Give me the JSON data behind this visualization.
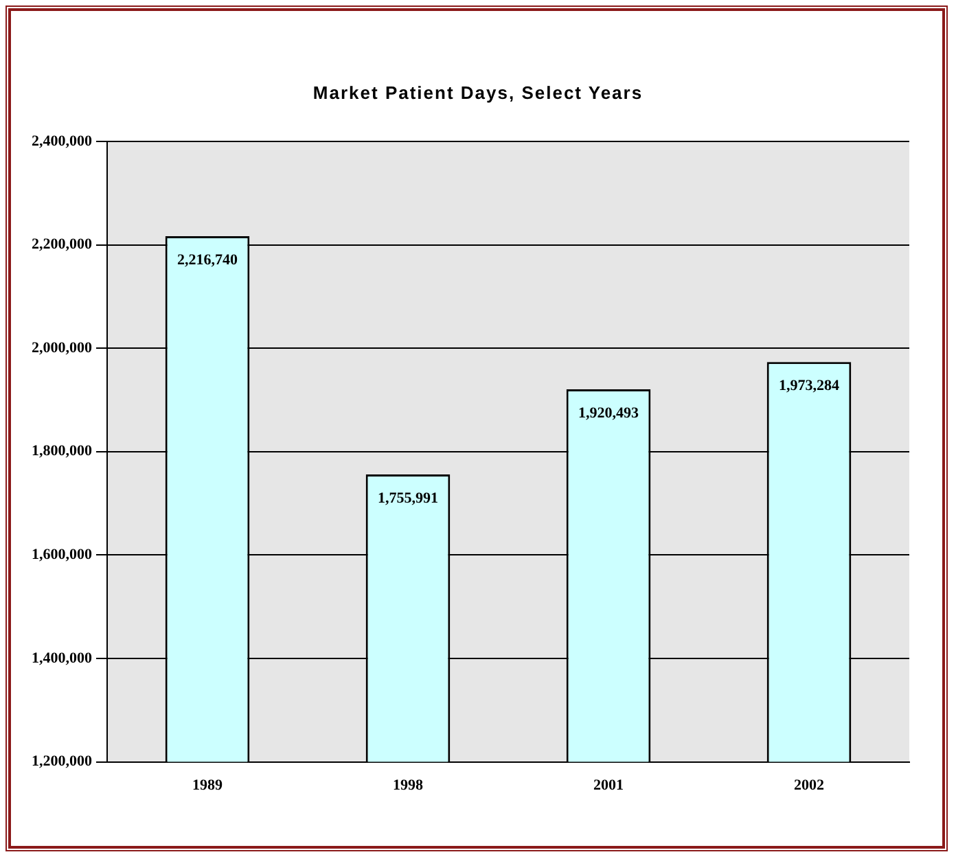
{
  "chart_data": {
    "type": "bar",
    "title": "Market Patient Days, Select Years",
    "categories": [
      "1989",
      "1998",
      "2001",
      "2002"
    ],
    "values": [
      2216740,
      1755991,
      1920493,
      1973284
    ],
    "color": "#ccffff",
    "ylim": [
      1200000,
      2400000
    ],
    "yticks": [
      {
        "value": 1200000,
        "label": "1,200,000"
      },
      {
        "value": 1400000,
        "label": "1,400,000"
      },
      {
        "value": 1600000,
        "label": "1,600,000"
      },
      {
        "value": 1800000,
        "label": "1,800,000"
      },
      {
        "value": 2000000,
        "label": "2,000,000"
      },
      {
        "value": 2200000,
        "label": "2,200,000"
      },
      {
        "value": 2400000,
        "label": "2,400,000"
      }
    ],
    "value_labels": [
      "2,216,740",
      "1,755,991",
      "1,920,493",
      "1,973,284"
    ],
    "grid": "y",
    "legend": false
  }
}
